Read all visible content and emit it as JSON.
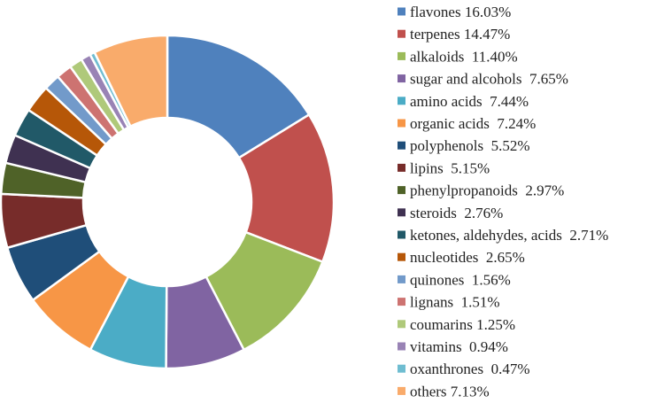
{
  "chart_data": {
    "type": "pie",
    "variant": "donut",
    "title": "",
    "legend_position": "right",
    "slices": [
      {
        "label": "flavones 16.03%",
        "value": 16.03,
        "color": "#4F81BD"
      },
      {
        "label": "terpenes 14.47%",
        "value": 14.47,
        "color": "#C0504D"
      },
      {
        "label": "alkaloids  11.40%",
        "value": 11.4,
        "color": "#9BBB59"
      },
      {
        "label": "sugar and alcohols  7.65%",
        "value": 7.65,
        "color": "#8064A2"
      },
      {
        "label": "amino acids  7.44%",
        "value": 7.44,
        "color": "#4BACC6"
      },
      {
        "label": "organic acids  7.24%",
        "value": 7.24,
        "color": "#F79646"
      },
      {
        "label": "polyphenols  5.52%",
        "value": 5.52,
        "color": "#1F4E79"
      },
      {
        "label": "lipins  5.15%",
        "value": 5.15,
        "color": "#772C2A"
      },
      {
        "label": "phenylpropanoids  2.97%",
        "value": 2.97,
        "color": "#4F6228"
      },
      {
        "label": "steroids  2.76%",
        "value": 2.76,
        "color": "#3F3151"
      },
      {
        "label": "ketones, aldehydes, acids  2.71%",
        "value": 2.71,
        "color": "#215968"
      },
      {
        "label": "nucleotides  2.65%",
        "value": 2.65,
        "color": "#B65708"
      },
      {
        "label": "quinones  1.56%",
        "value": 1.56,
        "color": "#729ACA"
      },
      {
        "label": "lignans  1.51%",
        "value": 1.51,
        "color": "#CD7371"
      },
      {
        "label": "coumarins 1.25%",
        "value": 1.25,
        "color": "#AFC97A"
      },
      {
        "label": "vitamins  0.94%",
        "value": 0.94,
        "color": "#9983B5"
      },
      {
        "label": "oxanthrones  0.47%",
        "value": 0.47,
        "color": "#6FBDD1"
      },
      {
        "label": "others 7.13%",
        "value": 7.13,
        "color": "#F9AB6B"
      }
    ]
  }
}
